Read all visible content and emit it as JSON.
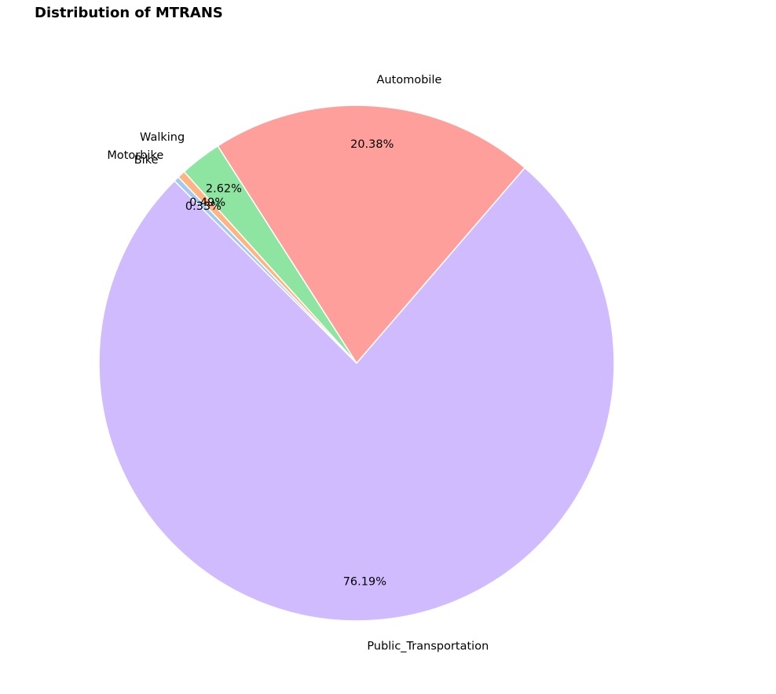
{
  "chart_data": {
    "type": "pie",
    "title": "Distribution of MTRANS",
    "categories": [
      "Public_Transportation",
      "Automobile",
      "Walking",
      "Motorbike",
      "Bike"
    ],
    "values": [
      76.19,
      20.38,
      2.62,
      0.49,
      0.33
    ],
    "value_labels": [
      "76.19%",
      "20.38%",
      "2.62%",
      "0.49%",
      "0.33%"
    ],
    "colors": [
      "#d0bbff",
      "#ff9f9b",
      "#8de5a1",
      "#ffb482",
      "#a1c9f4"
    ],
    "edge_color": "#ffffff",
    "legend": "none"
  }
}
